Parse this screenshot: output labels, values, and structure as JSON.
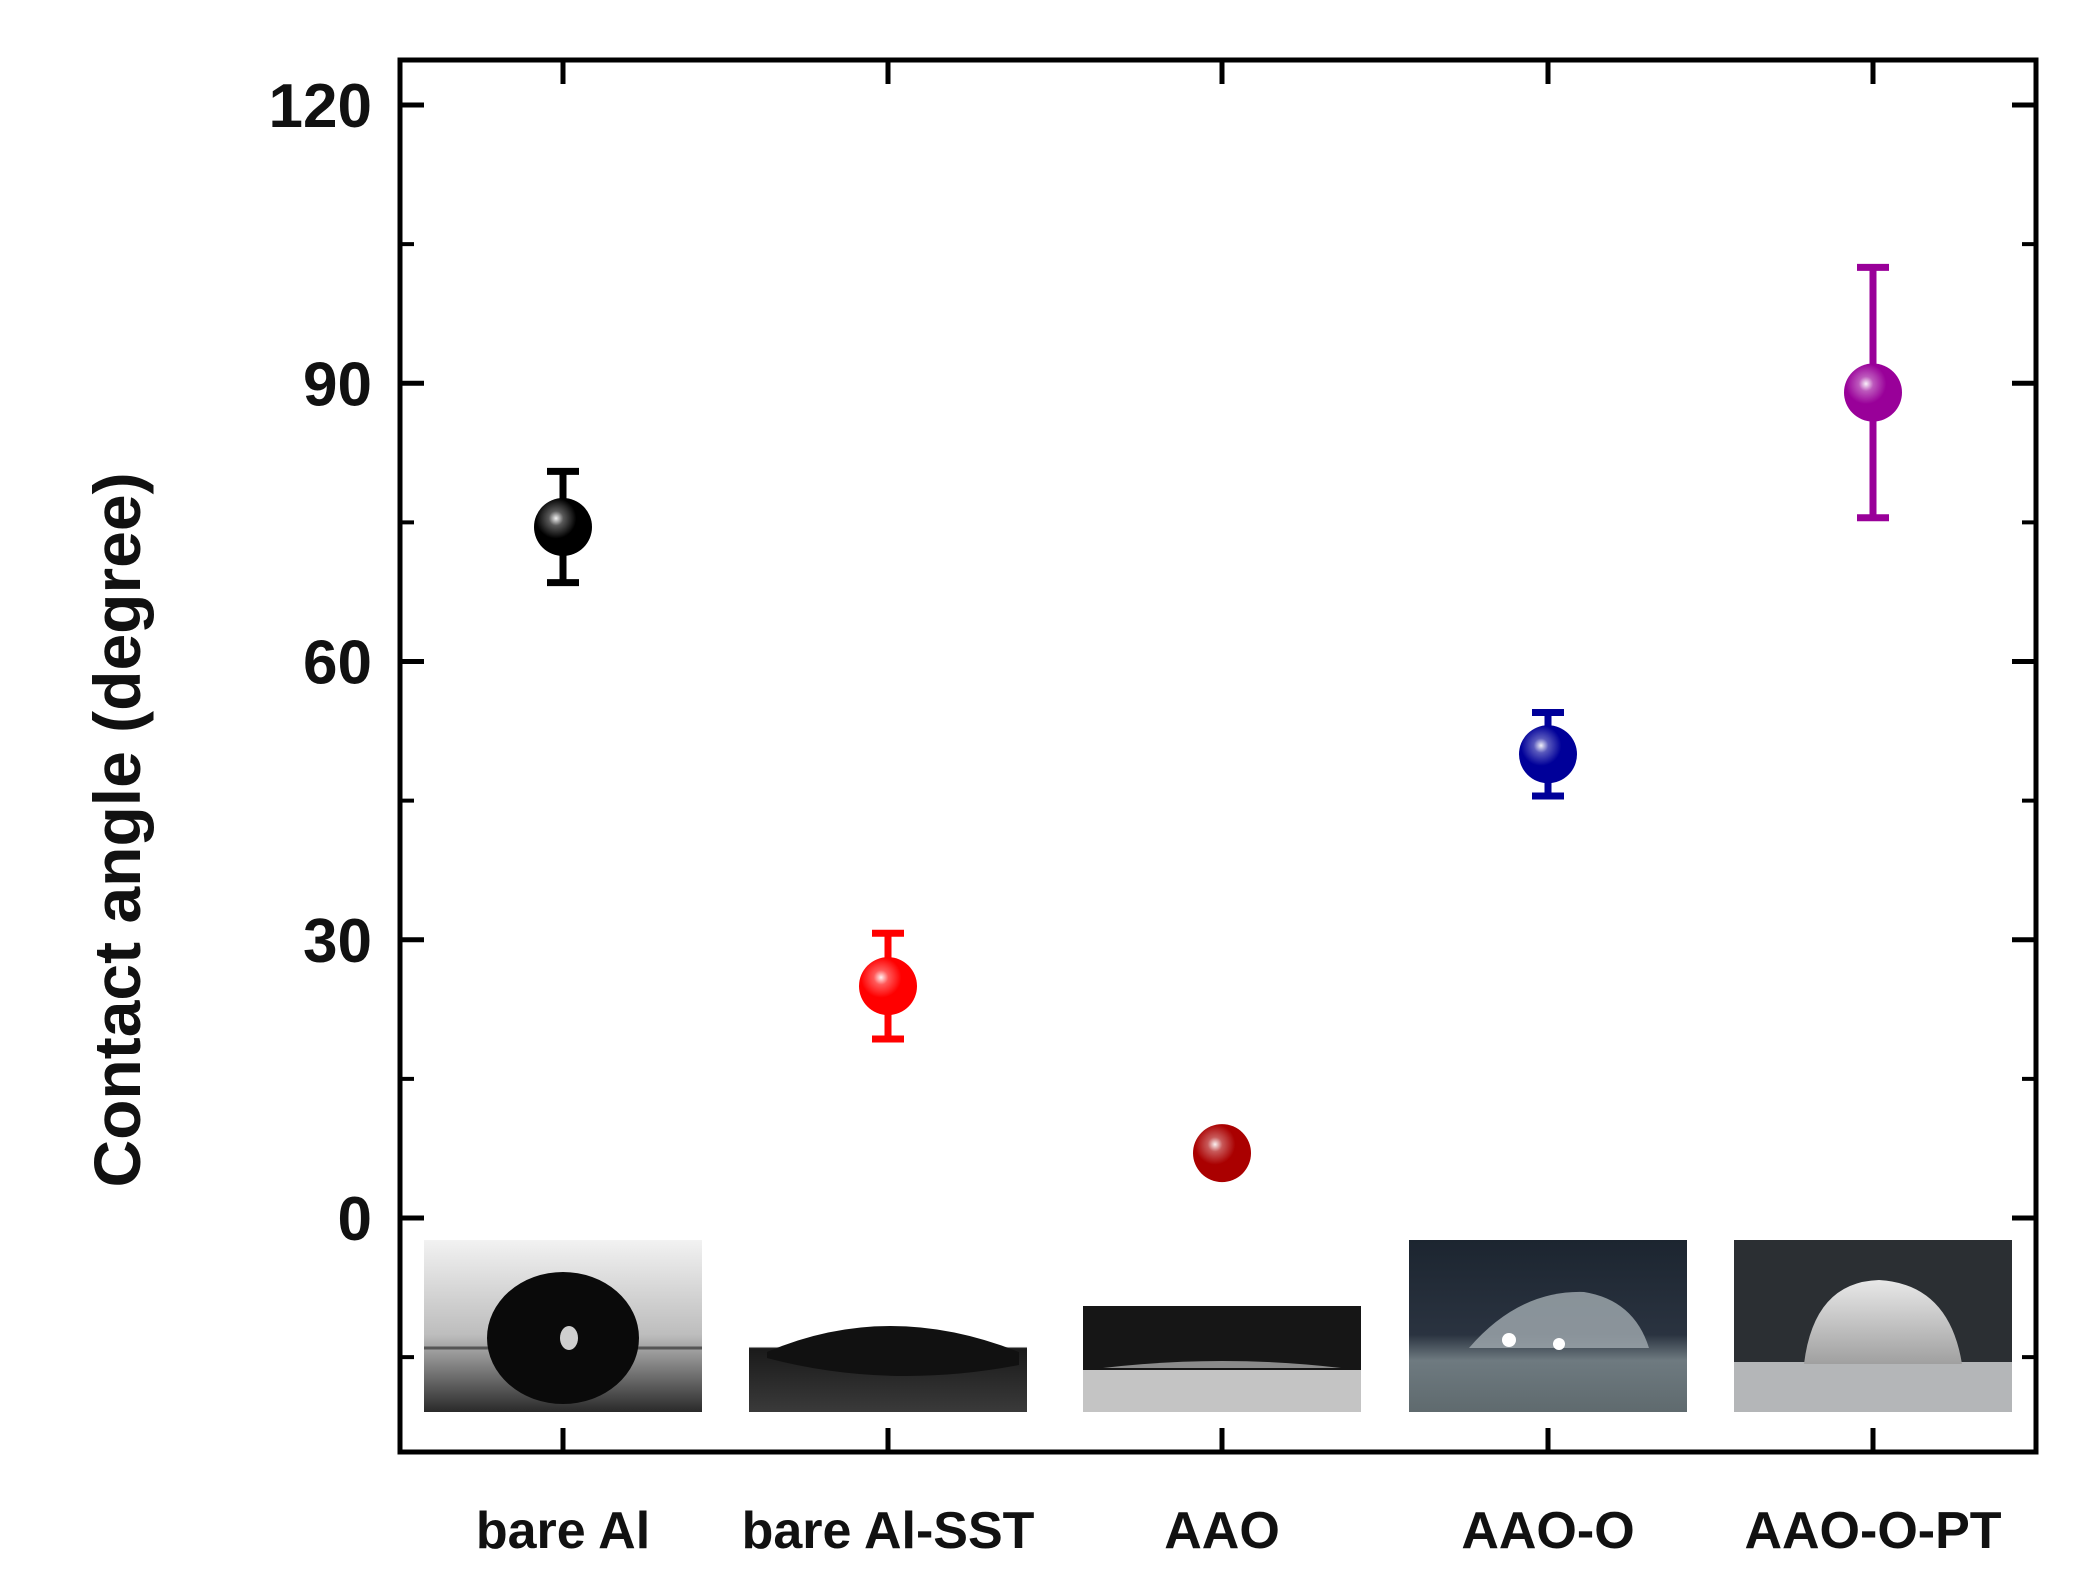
{
  "chart_data": {
    "type": "scatter",
    "title": "",
    "xlabel": "",
    "ylabel": "Contact angle (degree)",
    "categories": [
      "bare Al",
      "bare Al-SST",
      "AAO",
      "AAO-O",
      "AAO-O-PT"
    ],
    "ylim": [
      -22,
      120
    ],
    "yticks": [
      0,
      30,
      60,
      90,
      120
    ],
    "grid": false,
    "legend": "none",
    "points": [
      {
        "category": "bare Al",
        "value": 74.5,
        "error": 6.0,
        "color": "#000000"
      },
      {
        "category": "bare Al-SST",
        "value": 25.0,
        "error": 5.7,
        "color": "#ff0000"
      },
      {
        "category": "AAO",
        "value": 7.0,
        "error": 1.0,
        "color": "#aa0000"
      },
      {
        "category": "AAO-O",
        "value": 50.0,
        "error": 4.5,
        "color": "#000099"
      },
      {
        "category": "AAO-O-PT",
        "value": 89.0,
        "error": 13.5,
        "color": "#990099"
      }
    ],
    "insets": [
      "droplet image on bare Al",
      "droplet image on bare Al-SST",
      "droplet image on AAO",
      "droplet image on AAO-O",
      "droplet image on AAO-O-PT"
    ]
  }
}
